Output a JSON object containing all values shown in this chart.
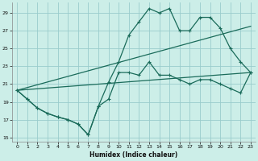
{
  "xlabel": "Humidex (Indice chaleur)",
  "background_color": "#cceee8",
  "grid_color": "#99cccc",
  "line_color": "#1a6b5a",
  "xlim": [
    -0.5,
    23.5
  ],
  "ylim": [
    14.5,
    30.2
  ],
  "yticks": [
    15,
    17,
    19,
    21,
    23,
    25,
    27,
    29
  ],
  "xticks": [
    0,
    1,
    2,
    3,
    4,
    5,
    6,
    7,
    8,
    9,
    10,
    11,
    12,
    13,
    14,
    15,
    16,
    17,
    18,
    19,
    20,
    21,
    22,
    23
  ],
  "x": [
    0,
    1,
    2,
    3,
    4,
    5,
    6,
    7,
    8,
    9,
    10,
    11,
    12,
    13,
    14,
    15,
    16,
    17,
    18,
    19,
    20,
    21,
    22,
    23
  ],
  "y_jagged": [
    20.3,
    19.3,
    18.3,
    17.7,
    17.3,
    17.0,
    16.5,
    15.3,
    18.5,
    19.3,
    22.3,
    22.3,
    22.0,
    23.5,
    22.0,
    22.0,
    21.5,
    21.0,
    21.5,
    21.5,
    21.0,
    20.5,
    20.0,
    22.3
  ],
  "y_main": [
    20.3,
    19.3,
    18.3,
    17.7,
    17.3,
    17.0,
    16.5,
    15.3,
    18.5,
    21.2,
    23.5,
    26.5,
    28.0,
    29.5,
    29.0,
    29.5,
    27.0,
    27.0,
    28.5,
    28.5,
    27.3,
    25.0,
    23.5,
    22.3
  ],
  "trend1_x": [
    0,
    23
  ],
  "trend1_y": [
    20.3,
    27.5
  ],
  "trend2_x": [
    0,
    23
  ],
  "trend2_y": [
    20.3,
    22.3
  ]
}
